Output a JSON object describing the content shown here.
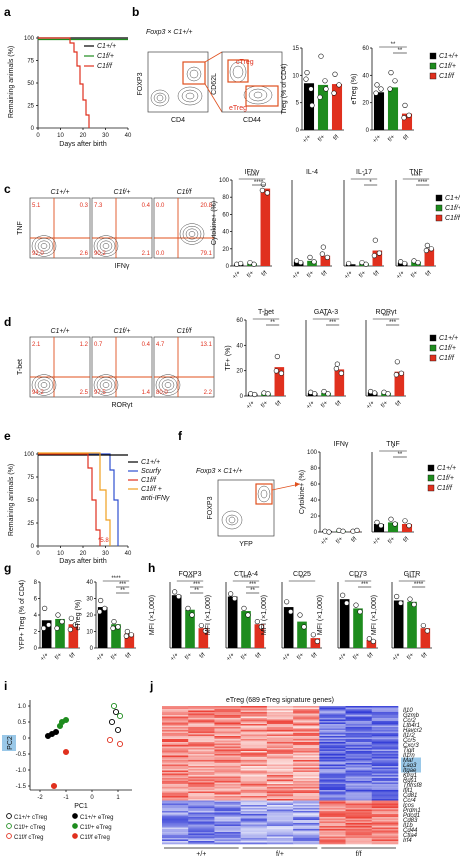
{
  "colors": {
    "wt": "#000000",
    "het": "#1e8c1e",
    "ko": "#e0301e",
    "scurfy": "#3050d0",
    "anti": "#f0a020",
    "gate": "#e0501e"
  },
  "panels": {
    "a": {
      "label": "a",
      "ylabel": "Remaining animals (%)",
      "xlabel": "Days after birth",
      "xticks": [
        "0",
        "10",
        "20",
        "30",
        "40"
      ],
      "yticks": [
        "100",
        "75",
        "50",
        "25",
        "0"
      ],
      "legend": [
        "C1+/+",
        "C1f/+",
        "C1f/f"
      ]
    },
    "b": {
      "label": "b",
      "mouse": "Foxp3 × C1+/+",
      "flow_y1": "FOXP3",
      "flow_x1": "CD4",
      "flow_y2": "CD62L",
      "flow_x2": "CD44",
      "gate_c": "cTreg",
      "gate_e": "eTreg",
      "bar1_ylabel": "Treg (% of CD4)",
      "bar1_yticks": [
        "15",
        "10",
        "5",
        "0"
      ],
      "bar2_ylabel": "eTreg (%)",
      "bar2_yticks": [
        "60",
        "40",
        "20",
        "0"
      ],
      "bar2_sig": [
        "**",
        "**"
      ],
      "groups": [
        "+/+",
        "f/+",
        "f/f"
      ],
      "legend": [
        "C1+/+",
        "C1f/+",
        "C1f/f"
      ]
    },
    "c": {
      "label": "c",
      "genotypes": [
        "C1+/+",
        "C1f/+",
        "C1f/f"
      ],
      "ylabel": "TNF",
      "xlabel": "IFNγ",
      "quadrants": [
        [
          "5.1",
          "0.3",
          "92.0",
          "2.6"
        ],
        [
          "7.3",
          "0.4",
          "90.2",
          "2.1"
        ],
        [
          "0.0",
          "20.8",
          "0.0",
          "79.1"
        ]
      ],
      "bar_titles": [
        "IFNγ",
        "IL-4",
        "IL-17",
        "TNF"
      ],
      "bar_ylabel": "Cytokine+ (%)",
      "bar_yticks": [
        "100",
        "80",
        "60",
        "40",
        "20",
        "0"
      ],
      "sig": {
        "IFNγ": [
          "****",
          "****"
        ],
        "IL-17": [
          "*",
          "*"
        ],
        "TNF": [
          "****",
          "****"
        ]
      },
      "legend": [
        "C1+/+",
        "C1f/+",
        "C1f/f"
      ]
    },
    "d": {
      "label": "d",
      "genotypes": [
        "C1+/+",
        "C1f/+",
        "C1f/f"
      ],
      "ylabel": "T-bet",
      "xlabel": "RORγt",
      "quadrants": [
        [
          "2.1",
          "1.2",
          "94.2",
          "2.5"
        ],
        [
          "0.7",
          "0.4",
          "97.5",
          "1.4"
        ],
        [
          "4.7",
          "13.1",
          "80.0",
          "2.2"
        ]
      ],
      "bar_titles": [
        "T-bet",
        "GATA-3",
        "RORγt"
      ],
      "bar_ylabel": "TF+ (%)",
      "bar_yticks": [
        "60",
        "40",
        "20",
        "0"
      ],
      "sig": {
        "T-bet": [
          "**",
          "**"
        ],
        "GATA-3": [
          "**",
          "***"
        ],
        "RORγt": [
          "***",
          "***"
        ]
      },
      "legend": [
        "C1+/+",
        "C1f/+",
        "C1f/f"
      ]
    },
    "e": {
      "label": "e",
      "ylabel": "Remaining animals (%)",
      "xlabel": "Days after birth",
      "xticks": [
        "0",
        "10",
        "20",
        "30",
        "40"
      ],
      "yticks": [
        "100",
        "75",
        "50",
        "25",
        "0"
      ],
      "legend": [
        "C1+/+",
        "Scurfy",
        "C1f/f",
        "C1f/f +",
        "anti-IFNγ"
      ],
      "annot": "*5.8"
    },
    "f": {
      "label": "f",
      "mouse": "Foxp3 × C1+/+",
      "flow_y": "FOXP3",
      "flow_x": "YFP",
      "bar_titles": [
        "IFNγ",
        "TNF"
      ],
      "bar_ylabel": "Cytokine+ (%)",
      "bar_yticks": [
        "100",
        "80",
        "60",
        "40",
        "20",
        "0"
      ],
      "sig": {
        "TNF": [
          "*",
          "**"
        ]
      },
      "legend": [
        "C1+/+",
        "C1f/+",
        "C1f/f"
      ]
    },
    "g": {
      "label": "g",
      "bar1_ylabel": "YFP+ Treg (% of CD4)",
      "bar1_yticks": [
        "8",
        "6",
        "4",
        "2",
        "0"
      ],
      "bar2_ylabel": "eTreg (%)",
      "bar2_yticks": [
        "40",
        "30",
        "20",
        "10",
        "0"
      ],
      "bar2_sig": [
        "****",
        "***",
        "**"
      ]
    },
    "h": {
      "label": "h",
      "titles": [
        "FOXP3",
        "CTLA-4",
        "CD25",
        "CD73",
        "GITR"
      ],
      "ylabel": "MFI (×1,000)",
      "sig": [
        [
          "****",
          "***",
          "**"
        ],
        [
          "****",
          "***",
          "**"
        ],
        [
          "**"
        ],
        [
          "***",
          "***"
        ],
        [
          "****",
          "****"
        ]
      ]
    },
    "i": {
      "label": "i",
      "xlabel": "PC1",
      "ylabel": "PC2",
      "xticks": [
        "-2",
        "-1",
        "0",
        "1"
      ],
      "yticks": [
        "1.0",
        "0.5",
        "0",
        "-0.5",
        "-1.0",
        "-1.5"
      ],
      "legend": [
        "C1+/+ cTreg",
        "C1f/+ cTreg",
        "C1f/f cTreg",
        "C1+/+ eTreg",
        "C1f/+ eTreg",
        "C1f/f eTreg"
      ]
    },
    "j": {
      "label": "j",
      "title": "eTreg (689 eTreg signature genes)",
      "groups": [
        "+/+",
        "f/+",
        "f/f"
      ],
      "genes": [
        "Il10",
        "Gzmb",
        "Ccr2",
        "Ltb4r1",
        "Havcr2",
        "Il1r2",
        "Ccr5",
        "Cxcr3",
        "Tigit",
        "Il1rn",
        "Maf",
        "Lag3",
        "Itgae",
        "Klrg1",
        "Rgs1",
        "Tnfrsf8",
        "Ifit1",
        "Cd81",
        "Ccr4",
        "Icos",
        "Prdm1",
        "Pdcd1",
        "Cd83",
        "Il1b",
        "Cd44",
        "Ctla4",
        "Irf4"
      ],
      "highlighted": [
        "Maf",
        "Lag3",
        "Itgae"
      ]
    }
  }
}
